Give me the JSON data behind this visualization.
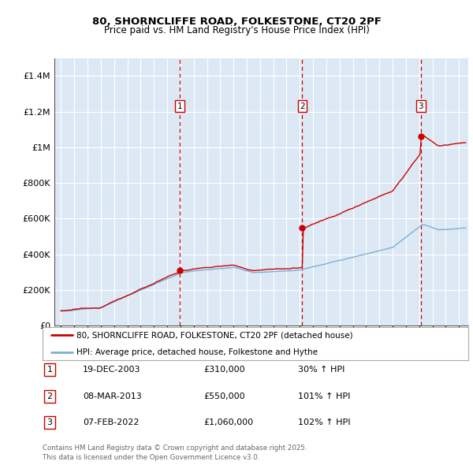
{
  "title": "80, SHORNCLIFFE ROAD, FOLKESTONE, CT20 2PF",
  "subtitle": "Price paid vs. HM Land Registry's House Price Index (HPI)",
  "red_label": "80, SHORNCLIFFE ROAD, FOLKESTONE, CT20 2PF (detached house)",
  "blue_label": "HPI: Average price, detached house, Folkestone and Hythe",
  "footnote": "Contains HM Land Registry data © Crown copyright and database right 2025.\nThis data is licensed under the Open Government Licence v3.0.",
  "transactions": [
    {
      "num": 1,
      "date": "19-DEC-2003",
      "price": "£310,000",
      "change": "30% ↑ HPI",
      "year": 2003.97,
      "price_val": 310000
    },
    {
      "num": 2,
      "date": "08-MAR-2013",
      "price": "£550,000",
      "change": "101% ↑ HPI",
      "year": 2013.19,
      "price_val": 550000
    },
    {
      "num": 3,
      "date": "07-FEB-2022",
      "price": "£1,060,000",
      "change": "102% ↑ HPI",
      "year": 2022.11,
      "price_val": 1060000
    }
  ],
  "ylim": [
    0,
    1500000
  ],
  "xlim_start": 1994.5,
  "xlim_end": 2025.7,
  "background_color": "#dce9f5",
  "grid_color": "#ffffff",
  "red_color": "#cc0000",
  "blue_color": "#7bafd4",
  "vline_color": "#cc0000"
}
